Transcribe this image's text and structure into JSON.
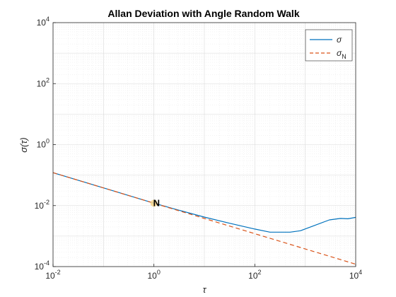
{
  "chart_data": {
    "type": "line",
    "title": "Allan Deviation with Angle Random Walk",
    "xlabel": "τ",
    "ylabel": "σ(τ)",
    "xscale": "log",
    "yscale": "log",
    "xlim": [
      0.01,
      10000
    ],
    "ylim": [
      0.0001,
      10000
    ],
    "xticks": [
      {
        "base": "10",
        "exp": "-2"
      },
      {
        "base": "10",
        "exp": "0"
      },
      {
        "base": "10",
        "exp": "2"
      },
      {
        "base": "10",
        "exp": "4"
      }
    ],
    "yticks": [
      {
        "base": "10",
        "exp": "-4"
      },
      {
        "base": "10",
        "exp": "-2"
      },
      {
        "base": "10",
        "exp": "0"
      },
      {
        "base": "10",
        "exp": "2"
      },
      {
        "base": "10",
        "exp": "4"
      }
    ],
    "grid": true,
    "legend_position": "top-right",
    "series": [
      {
        "name": "σ",
        "color": "#0072BD",
        "style": "solid",
        "x": [
          0.01,
          0.1,
          1,
          3,
          10,
          30,
          100,
          200,
          500,
          800,
          1500,
          3000,
          5000,
          7000,
          10000
        ],
        "y": [
          0.12,
          0.038,
          0.012,
          0.0072,
          0.0042,
          0.0027,
          0.0017,
          0.00135,
          0.00135,
          0.0015,
          0.0022,
          0.0034,
          0.0038,
          0.0037,
          0.0041
        ]
      },
      {
        "name": "σ",
        "name_subscript": "N",
        "color": "#D95319",
        "style": "dashed",
        "x": [
          0.01,
          10000
        ],
        "y": [
          0.12,
          0.00012
        ]
      }
    ],
    "annotations": [
      {
        "text": "N",
        "x": 1,
        "y": 0.012,
        "marker_color": "#F5D48A"
      }
    ]
  }
}
